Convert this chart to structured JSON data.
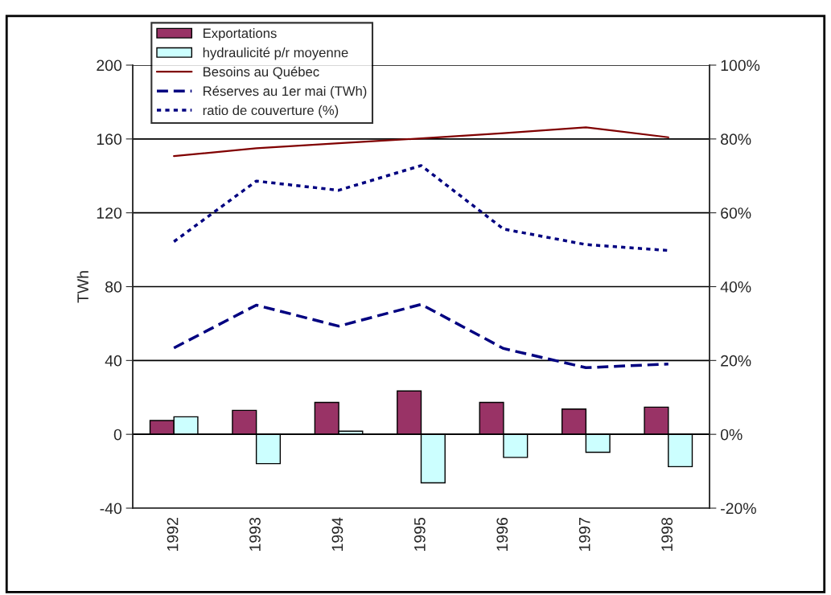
{
  "chart_data": {
    "type": "bar",
    "ylabel": "TWh",
    "categories": [
      "1992",
      "1993",
      "1994",
      "1995",
      "1996",
      "1997",
      "1998"
    ],
    "series": [
      {
        "name": "Exportations",
        "color": "#993366",
        "values": [
          7.5,
          13,
          17.3,
          23.5,
          17.3,
          13.7,
          14.7
        ]
      },
      {
        "name": "hydraulicité p/r moyenne",
        "color": "#ccffff",
        "values": [
          9.5,
          -15.9,
          1.7,
          -26.3,
          -12.5,
          -9.7,
          -17.5
        ]
      },
      {
        "name": "Besoins au Québec",
        "type": "line",
        "color": "#800000",
        "line_style": "solid",
        "values": [
          150.7,
          155,
          157.7,
          160.3,
          163.1,
          166.3,
          160.9
        ]
      },
      {
        "name": "Réserves au 1er mai (TWh)",
        "type": "line",
        "color": "#000080",
        "line_style": "dashed",
        "values": [
          46.8,
          70,
          58.6,
          70.4,
          46.5,
          36.1,
          38.1
        ]
      },
      {
        "name": "ratio de couverture (%)",
        "type": "line",
        "color": "#000080",
        "line_style": "dotted",
        "axis": "y2",
        "values": [
          52.2,
          68.6,
          66.1,
          72.8,
          55.6,
          51.4,
          49.8
        ]
      }
    ],
    "ylim": [
      -40,
      200
    ],
    "yticks": [
      -40,
      0,
      40,
      80,
      120,
      160,
      200
    ],
    "y2lim": [
      -20,
      100
    ],
    "y2ticks": [
      {
        "value": -20,
        "label": "-20%"
      },
      {
        "value": 0,
        "label": "0%"
      },
      {
        "value": 20,
        "label": "20%"
      },
      {
        "value": 40,
        "label": "40%"
      },
      {
        "value": 60,
        "label": "60%"
      },
      {
        "value": 80,
        "label": "80%"
      },
      {
        "value": 100,
        "label": "100%"
      }
    ],
    "grid": "y",
    "legend": "top left",
    "marker": "none"
  }
}
